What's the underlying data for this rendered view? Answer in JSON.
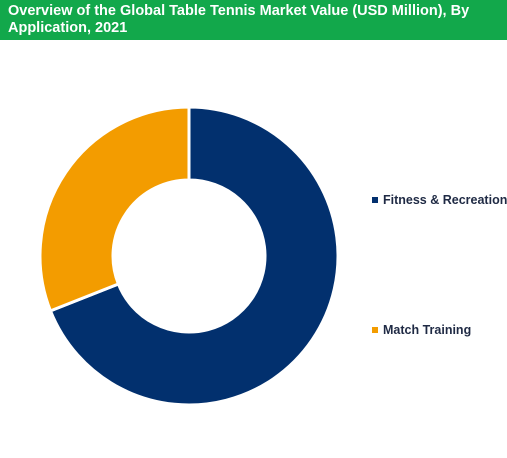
{
  "header": {
    "title": "Overview of the Global Table Tennis Market Value (USD Million), By Application, 2021"
  },
  "colors": {
    "header_bg": "#12a84b",
    "fitness": "#02306e",
    "match": "#f39c00"
  },
  "chart_data": {
    "type": "pie",
    "variant": "donut",
    "title": "Overview of the Global Table Tennis Market Value (USD Million), By Application, 2021",
    "categories": [
      "Fitness & Recreation",
      "Match Training"
    ],
    "values": [
      69,
      31
    ],
    "legend_position": "right"
  }
}
